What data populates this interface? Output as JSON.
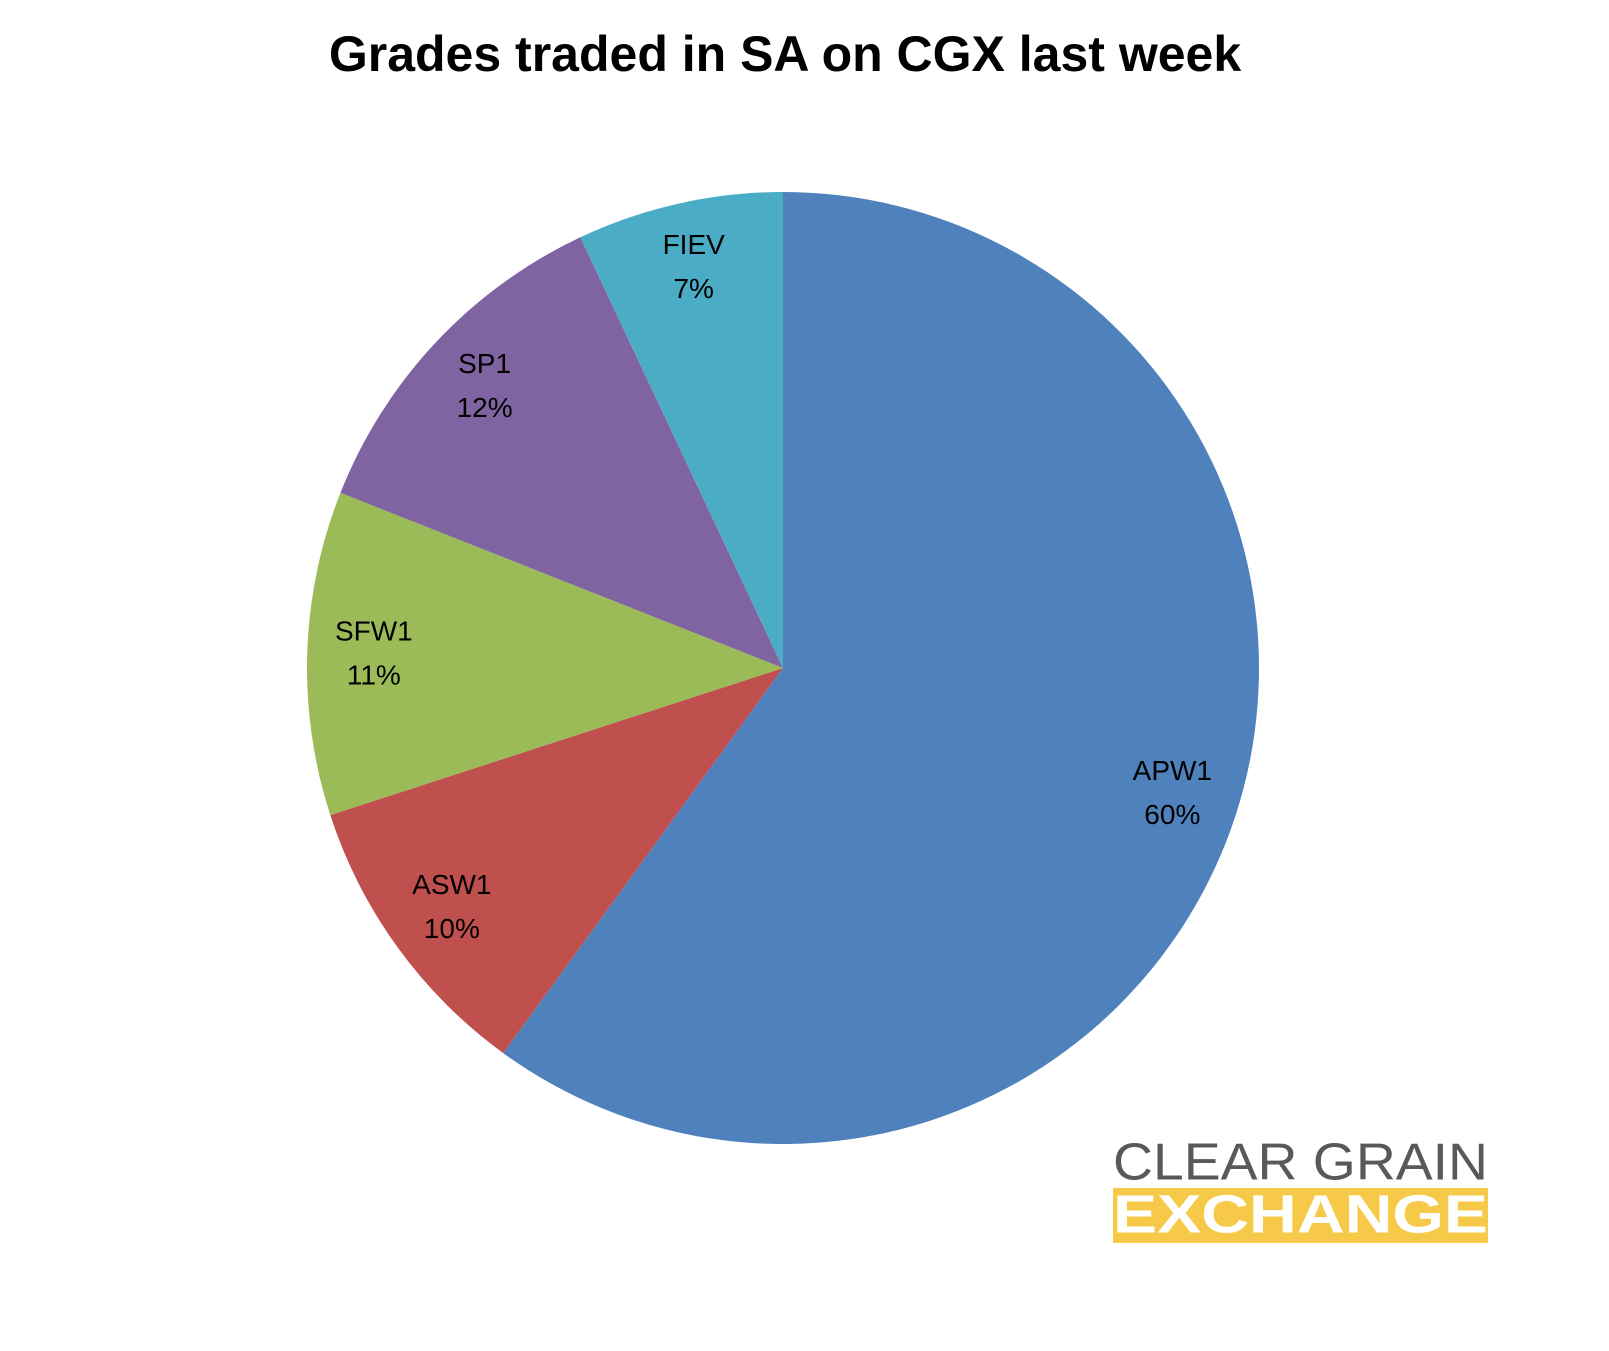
{
  "chart_data": {
    "type": "pie",
    "title": "Grades traded in SA on CGX last week",
    "categories": [
      "APW1",
      "ASW1",
      "SFW1",
      "SP1",
      "FIEV"
    ],
    "values": [
      60,
      10,
      11,
      12,
      7
    ],
    "value_labels": [
      "60%",
      "10%",
      "11%",
      "12%",
      "7%"
    ],
    "colors": [
      "#4f81bd",
      "#c0504d",
      "#9bbb59",
      "#8064a2",
      "#4bacc6"
    ]
  },
  "logo": {
    "line1": "CLEAR GRAIN",
    "line2": "EXCHANGE"
  }
}
